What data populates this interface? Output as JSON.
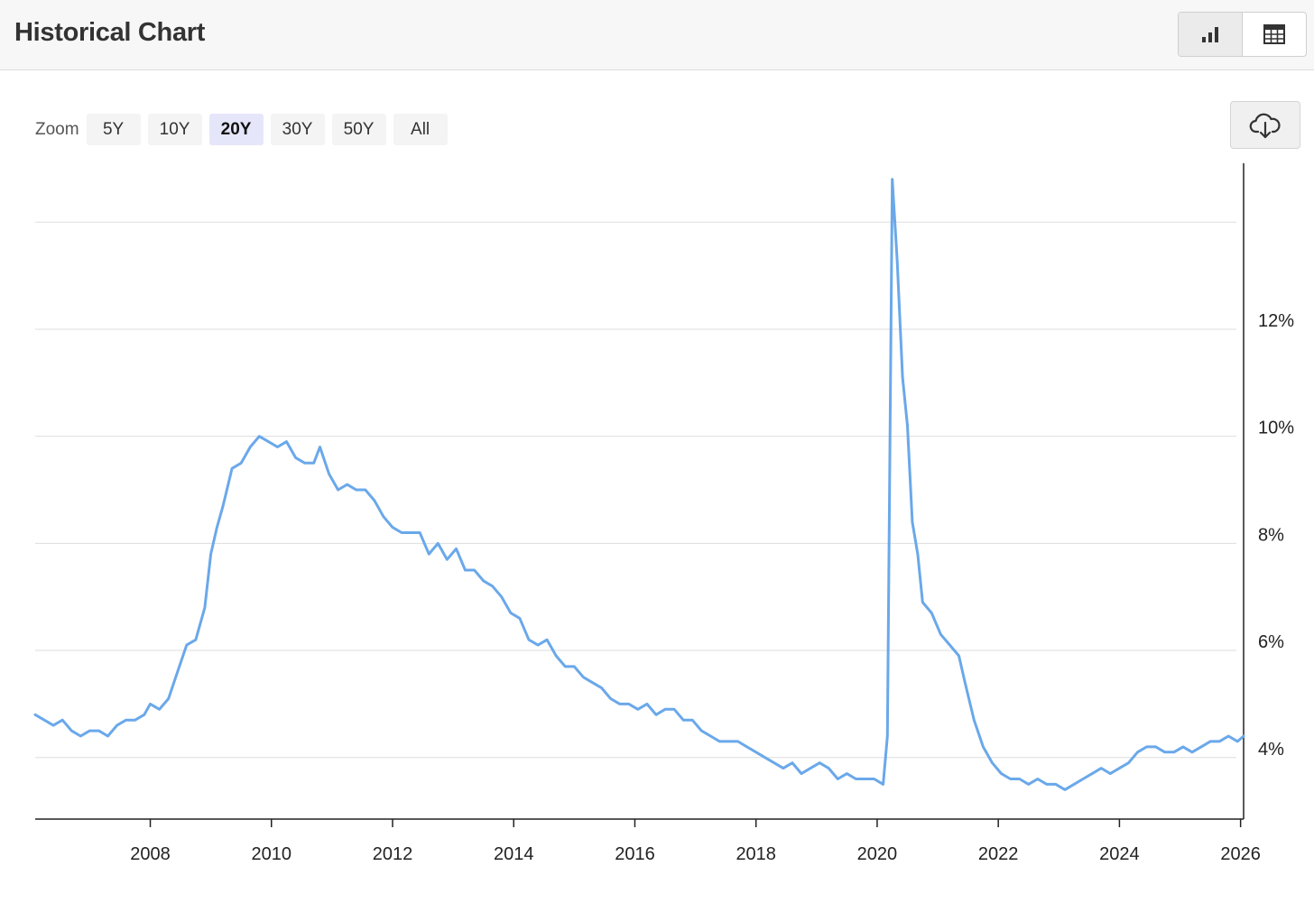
{
  "header": {
    "title": "Historical Chart",
    "view_toggle": [
      {
        "icon": "bar-chart-icon",
        "active": true
      },
      {
        "icon": "table-icon",
        "active": false
      }
    ]
  },
  "zoom": {
    "label": "Zoom",
    "options": [
      "5Y",
      "10Y",
      "20Y",
      "30Y",
      "50Y",
      "All"
    ],
    "selected": "20Y"
  },
  "download": {
    "icon": "cloud-download-icon"
  },
  "colors": {
    "line": "#6aa8ea",
    "grid": "#dddddd",
    "axis": "#222222"
  },
  "chart_data": {
    "type": "line",
    "title": "",
    "xlabel": "",
    "ylabel": "",
    "x_ticks": [
      "2008",
      "2010",
      "2012",
      "2014",
      "2016",
      "2018",
      "2020",
      "2022",
      "2024",
      "2026"
    ],
    "y_ticks": [
      "4%",
      "6%",
      "8%",
      "10%",
      "12%"
    ],
    "y_tick_values": [
      4,
      6,
      8,
      10,
      12
    ],
    "xlim": [
      2006.1,
      2026.05
    ],
    "ylim": [
      2.85,
      15.1
    ],
    "gridlines": [
      4,
      6,
      8,
      10,
      12,
      14
    ],
    "grid": true,
    "y_axis_position": "right",
    "series": [
      {
        "color": "#6aa8ea",
        "points": [
          [
            2006.1,
            4.8
          ],
          [
            2006.25,
            4.7
          ],
          [
            2006.4,
            4.6
          ],
          [
            2006.55,
            4.7
          ],
          [
            2006.7,
            4.5
          ],
          [
            2006.85,
            4.4
          ],
          [
            2007.0,
            4.5
          ],
          [
            2007.15,
            4.5
          ],
          [
            2007.3,
            4.4
          ],
          [
            2007.45,
            4.6
          ],
          [
            2007.6,
            4.7
          ],
          [
            2007.75,
            4.7
          ],
          [
            2007.9,
            4.8
          ],
          [
            2008.0,
            5.0
          ],
          [
            2008.15,
            4.9
          ],
          [
            2008.3,
            5.1
          ],
          [
            2008.45,
            5.6
          ],
          [
            2008.6,
            6.1
          ],
          [
            2008.75,
            6.2
          ],
          [
            2008.9,
            6.8
          ],
          [
            2009.0,
            7.8
          ],
          [
            2009.1,
            8.3
          ],
          [
            2009.2,
            8.7
          ],
          [
            2009.35,
            9.4
          ],
          [
            2009.5,
            9.5
          ],
          [
            2009.65,
            9.8
          ],
          [
            2009.8,
            10.0
          ],
          [
            2009.95,
            9.9
          ],
          [
            2010.1,
            9.8
          ],
          [
            2010.25,
            9.9
          ],
          [
            2010.4,
            9.6
          ],
          [
            2010.55,
            9.5
          ],
          [
            2010.7,
            9.5
          ],
          [
            2010.8,
            9.8
          ],
          [
            2010.95,
            9.3
          ],
          [
            2011.1,
            9.0
          ],
          [
            2011.25,
            9.1
          ],
          [
            2011.4,
            9.0
          ],
          [
            2011.55,
            9.0
          ],
          [
            2011.7,
            8.8
          ],
          [
            2011.85,
            8.5
          ],
          [
            2012.0,
            8.3
          ],
          [
            2012.15,
            8.2
          ],
          [
            2012.3,
            8.2
          ],
          [
            2012.45,
            8.2
          ],
          [
            2012.6,
            7.8
          ],
          [
            2012.75,
            8.0
          ],
          [
            2012.9,
            7.7
          ],
          [
            2013.05,
            7.9
          ],
          [
            2013.2,
            7.5
          ],
          [
            2013.35,
            7.5
          ],
          [
            2013.5,
            7.3
          ],
          [
            2013.65,
            7.2
          ],
          [
            2013.8,
            7.0
          ],
          [
            2013.95,
            6.7
          ],
          [
            2014.1,
            6.6
          ],
          [
            2014.25,
            6.2
          ],
          [
            2014.4,
            6.1
          ],
          [
            2014.55,
            6.2
          ],
          [
            2014.7,
            5.9
          ],
          [
            2014.85,
            5.7
          ],
          [
            2015.0,
            5.7
          ],
          [
            2015.15,
            5.5
          ],
          [
            2015.3,
            5.4
          ],
          [
            2015.45,
            5.3
          ],
          [
            2015.6,
            5.1
          ],
          [
            2015.75,
            5.0
          ],
          [
            2015.9,
            5.0
          ],
          [
            2016.05,
            4.9
          ],
          [
            2016.2,
            5.0
          ],
          [
            2016.35,
            4.8
          ],
          [
            2016.5,
            4.9
          ],
          [
            2016.65,
            4.9
          ],
          [
            2016.8,
            4.7
          ],
          [
            2016.95,
            4.7
          ],
          [
            2017.1,
            4.5
          ],
          [
            2017.25,
            4.4
          ],
          [
            2017.4,
            4.3
          ],
          [
            2017.55,
            4.3
          ],
          [
            2017.7,
            4.3
          ],
          [
            2017.85,
            4.2
          ],
          [
            2018.0,
            4.1
          ],
          [
            2018.15,
            4.0
          ],
          [
            2018.3,
            3.9
          ],
          [
            2018.45,
            3.8
          ],
          [
            2018.6,
            3.9
          ],
          [
            2018.75,
            3.7
          ],
          [
            2018.9,
            3.8
          ],
          [
            2019.05,
            3.9
          ],
          [
            2019.2,
            3.8
          ],
          [
            2019.35,
            3.6
          ],
          [
            2019.5,
            3.7
          ],
          [
            2019.65,
            3.6
          ],
          [
            2019.8,
            3.6
          ],
          [
            2019.95,
            3.6
          ],
          [
            2020.1,
            3.5
          ],
          [
            2020.17,
            4.4
          ],
          [
            2020.25,
            14.8
          ],
          [
            2020.33,
            13.3
          ],
          [
            2020.42,
            11.1
          ],
          [
            2020.5,
            10.2
          ],
          [
            2020.58,
            8.4
          ],
          [
            2020.67,
            7.8
          ],
          [
            2020.75,
            6.9
          ],
          [
            2020.9,
            6.7
          ],
          [
            2021.05,
            6.3
          ],
          [
            2021.2,
            6.1
          ],
          [
            2021.35,
            5.9
          ],
          [
            2021.45,
            5.4
          ],
          [
            2021.6,
            4.7
          ],
          [
            2021.75,
            4.2
          ],
          [
            2021.9,
            3.9
          ],
          [
            2022.05,
            3.7
          ],
          [
            2022.2,
            3.6
          ],
          [
            2022.35,
            3.6
          ],
          [
            2022.5,
            3.5
          ],
          [
            2022.65,
            3.6
          ],
          [
            2022.8,
            3.5
          ],
          [
            2022.95,
            3.5
          ],
          [
            2023.1,
            3.4
          ],
          [
            2023.25,
            3.5
          ],
          [
            2023.4,
            3.6
          ],
          [
            2023.55,
            3.7
          ],
          [
            2023.7,
            3.8
          ],
          [
            2023.85,
            3.7
          ],
          [
            2024.0,
            3.8
          ],
          [
            2024.15,
            3.9
          ],
          [
            2024.3,
            4.1
          ],
          [
            2024.45,
            4.2
          ],
          [
            2024.6,
            4.2
          ],
          [
            2024.75,
            4.1
          ],
          [
            2024.9,
            4.1
          ],
          [
            2025.05,
            4.2
          ],
          [
            2025.2,
            4.1
          ],
          [
            2025.35,
            4.2
          ],
          [
            2025.5,
            4.3
          ],
          [
            2025.65,
            4.3
          ],
          [
            2025.8,
            4.4
          ],
          [
            2025.95,
            4.3
          ],
          [
            2026.05,
            4.4
          ]
        ]
      }
    ]
  }
}
